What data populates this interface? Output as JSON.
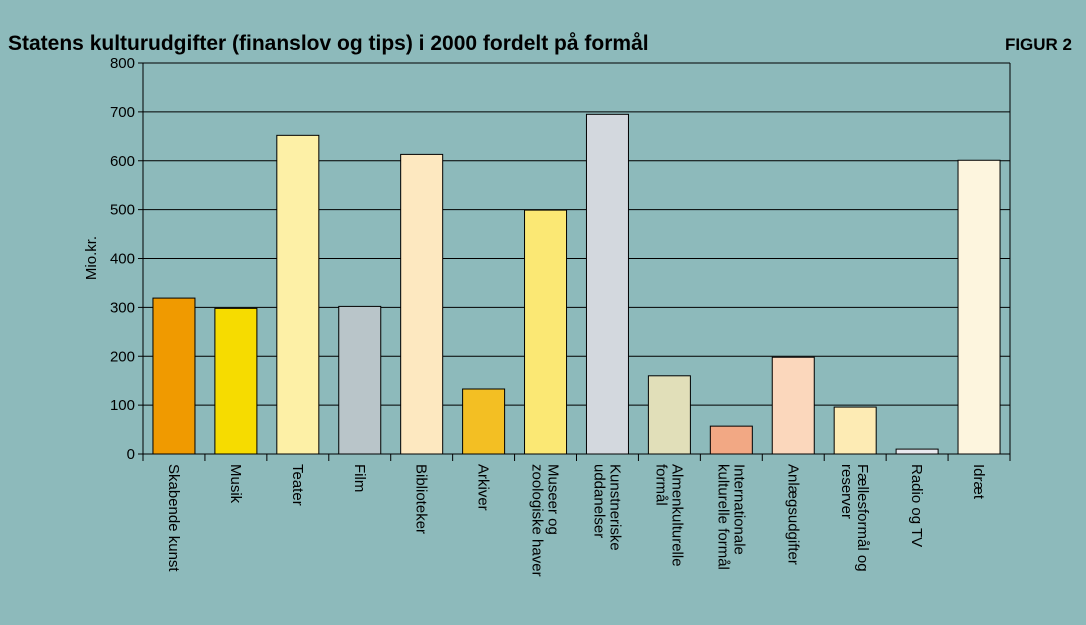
{
  "chart_data": {
    "type": "bar",
    "title": "Statens kulturudgifter (finanslov og tips) i 2000 fordelt på formål",
    "figure_label": "FIGUR 2",
    "y_axis_label": "Mio.kr.",
    "categories": [
      "Skabende kunst",
      "Musik",
      "Teater",
      "Film",
      "Biblioteker",
      "Arkiver",
      "Museer og\nzoologiske haver",
      "Kunstneriske\nuddanelser",
      "Almenkulturelle\nformål",
      "Internationale\nkulturelle formål",
      "Anlægsudgifter",
      "Fællesformål og\nreserver",
      "Radio og TV",
      "Idræt"
    ],
    "values": [
      319,
      298,
      652,
      302,
      613,
      133,
      499,
      695,
      160,
      57,
      198,
      96,
      10,
      601
    ],
    "colors": [
      "#f09a00",
      "#f6dc00",
      "#fdf0a6",
      "#b9c5c9",
      "#fde8c0",
      "#f3bf23",
      "#fbe874",
      "#d3d8de",
      "#e1dfb9",
      "#f2a884",
      "#fbd7bc",
      "#fdebb4",
      "#e8e8ee",
      "#fdf5de"
    ],
    "ylim": [
      0,
      800
    ],
    "yticks": [
      0,
      100,
      200,
      300,
      400,
      500,
      600,
      700,
      800
    ],
    "grid": true
  }
}
